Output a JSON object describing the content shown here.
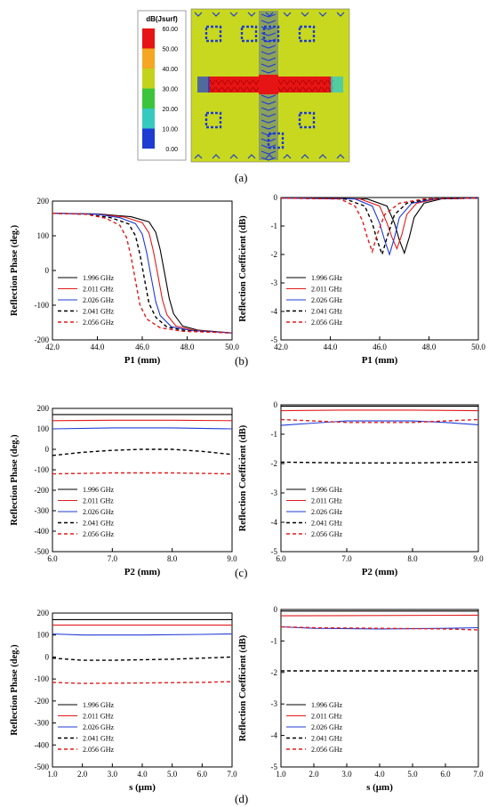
{
  "panel_labels": [
    "(a)",
    "(b)",
    "(c)",
    "(d)"
  ],
  "legend_colors": {
    "1.996 GHz": "#000000",
    "2.011 GHz": "#e21b1b",
    "2.026 GHz": "#1f3bd6",
    "2.041 GHz": "#000000",
    "2.056 GHz": "#e21b1b"
  },
  "field_map": {
    "colorbar_title": "dB(Jsurf)",
    "colorbar_ticks": [
      "60.00",
      "50.00",
      "40.00",
      "30.00",
      "20.00",
      "10.00",
      "0.00"
    ],
    "colorbar_colors": [
      "#e61414",
      "#f5a623",
      "#c3d21a",
      "#3cc43c",
      "#36c9c0",
      "#1e3cd2",
      "#1e3cd2"
    ],
    "background_color": "#c8d81e"
  },
  "chart_data": [
    {
      "id": "b-phase",
      "type": "line",
      "xlabel": "P1 (mm)",
      "ylabel": "Reflection Phase (deg.)",
      "xlim": [
        42,
        50
      ],
      "ylim": [
        -200,
        200
      ],
      "xticks": [
        "42.0",
        "44.0",
        "46.0",
        "48.0",
        "50.0"
      ],
      "yticks": [
        "-200",
        "-100",
        "0",
        "100",
        "200"
      ],
      "legend": "bottom-left",
      "series": [
        {
          "name": "1.996 GHz",
          "dash": false,
          "x": [
            42.0,
            44.0,
            45.5,
            46.3,
            46.6,
            46.8,
            47.0,
            47.2,
            47.4,
            47.8,
            48.5,
            50.0
          ],
          "y": [
            165,
            163,
            155,
            140,
            110,
            60,
            -10,
            -80,
            -125,
            -160,
            -172,
            -180
          ]
        },
        {
          "name": "2.011 GHz",
          "dash": false,
          "x": [
            42.0,
            44.0,
            45.2,
            46.0,
            46.3,
            46.5,
            46.7,
            46.9,
            47.1,
            47.5,
            48.3,
            50.0
          ],
          "y": [
            165,
            162,
            154,
            138,
            108,
            55,
            -15,
            -85,
            -128,
            -160,
            -172,
            -180
          ]
        },
        {
          "name": "2.026 GHz",
          "dash": false,
          "x": [
            42.0,
            44.0,
            45.0,
            45.7,
            46.0,
            46.2,
            46.4,
            46.6,
            46.8,
            47.3,
            48.2,
            50.0
          ],
          "y": [
            165,
            162,
            152,
            135,
            105,
            50,
            -20,
            -90,
            -130,
            -162,
            -173,
            -180
          ]
        },
        {
          "name": "2.041 GHz",
          "dash": true,
          "x": [
            42.0,
            43.5,
            44.6,
            45.4,
            45.7,
            45.9,
            46.1,
            46.3,
            46.6,
            47.1,
            48.0,
            50.0
          ],
          "y": [
            165,
            162,
            152,
            134,
            100,
            45,
            -25,
            -95,
            -135,
            -163,
            -174,
            -180
          ]
        },
        {
          "name": "2.056 GHz",
          "dash": true,
          "x": [
            42.0,
            43.5,
            44.4,
            45.0,
            45.3,
            45.5,
            45.7,
            45.9,
            46.2,
            46.8,
            47.8,
            50.0
          ],
          "y": [
            165,
            162,
            150,
            130,
            95,
            40,
            -30,
            -100,
            -140,
            -165,
            -175,
            -180
          ]
        }
      ]
    },
    {
      "id": "b-coef",
      "type": "line",
      "xlabel": "P1 (mm)",
      "ylabel": "Reflection Coefficient (dB)",
      "xlim": [
        42,
        50
      ],
      "ylim": [
        -5,
        0
      ],
      "xticks": [
        "42.0",
        "44.0",
        "46.0",
        "48.0",
        "50.0"
      ],
      "yticks": [
        "-5",
        "-4",
        "-3",
        "-2",
        "-1",
        "0"
      ],
      "legend": "bottom-left",
      "series": [
        {
          "name": "1.996 GHz",
          "dash": false,
          "x": [
            42.0,
            45.5,
            46.3,
            46.6,
            46.8,
            47.0,
            47.2,
            47.4,
            47.8,
            48.5,
            50.0
          ],
          "y": [
            -0.02,
            -0.05,
            -0.3,
            -0.9,
            -1.5,
            -1.95,
            -1.4,
            -0.7,
            -0.2,
            -0.05,
            -0.02
          ]
        },
        {
          "name": "2.011 GHz",
          "dash": false,
          "x": [
            42.0,
            45.2,
            46.0,
            46.3,
            46.5,
            46.7,
            46.9,
            47.1,
            47.5,
            48.3,
            50.0
          ],
          "y": [
            -0.02,
            -0.05,
            -0.3,
            -0.9,
            -1.4,
            -1.8,
            -1.3,
            -0.6,
            -0.2,
            -0.05,
            -0.02
          ]
        },
        {
          "name": "2.026 GHz",
          "dash": false,
          "x": [
            42.0,
            45.0,
            45.7,
            46.0,
            46.2,
            46.4,
            46.6,
            46.8,
            47.3,
            48.2,
            50.0
          ],
          "y": [
            -0.02,
            -0.05,
            -0.3,
            -0.9,
            -1.5,
            -2.0,
            -1.4,
            -0.7,
            -0.2,
            -0.05,
            -0.02
          ]
        },
        {
          "name": "2.041 GHz",
          "dash": true,
          "x": [
            42.0,
            44.6,
            45.4,
            45.7,
            45.9,
            46.1,
            46.3,
            46.6,
            47.1,
            48.0,
            50.0
          ],
          "y": [
            -0.02,
            -0.05,
            -0.3,
            -0.9,
            -1.5,
            -2.0,
            -1.4,
            -0.6,
            -0.2,
            -0.05,
            -0.02
          ]
        },
        {
          "name": "2.056 GHz",
          "dash": true,
          "x": [
            42.0,
            44.4,
            45.0,
            45.3,
            45.5,
            45.7,
            45.9,
            46.2,
            46.8,
            47.8,
            50.0
          ],
          "y": [
            -0.02,
            -0.05,
            -0.3,
            -0.8,
            -1.4,
            -1.9,
            -1.3,
            -0.6,
            -0.2,
            -0.05,
            -0.02
          ]
        }
      ]
    },
    {
      "id": "c-phase",
      "type": "line",
      "xlabel": "P2 (mm)",
      "ylabel": "Reflection Phase (deg.)",
      "xlim": [
        6,
        9
      ],
      "ylim": [
        -500,
        200
      ],
      "xticks": [
        "6.0",
        "7.0",
        "8.0",
        "9.0"
      ],
      "yticks": [
        "-500",
        "-400",
        "-300",
        "-200",
        "-100",
        "0",
        "100",
        "200"
      ],
      "legend": "bottom-left",
      "series": [
        {
          "name": "1.996 GHz",
          "dash": false,
          "x": [
            6.0,
            7.0,
            8.0,
            9.0
          ],
          "y": [
            170,
            170,
            170,
            170
          ]
        },
        {
          "name": "2.011 GHz",
          "dash": false,
          "x": [
            6.0,
            7.0,
            8.0,
            9.0
          ],
          "y": [
            140,
            142,
            142,
            140
          ]
        },
        {
          "name": "2.026 GHz",
          "dash": false,
          "x": [
            6.0,
            7.0,
            8.0,
            9.0
          ],
          "y": [
            100,
            105,
            105,
            100
          ]
        },
        {
          "name": "2.041 GHz",
          "dash": true,
          "x": [
            6.0,
            6.5,
            7.0,
            7.5,
            8.0,
            8.5,
            9.0
          ],
          "y": [
            -30,
            -15,
            -5,
            0,
            0,
            -10,
            -25
          ]
        },
        {
          "name": "2.056 GHz",
          "dash": true,
          "x": [
            6.0,
            7.0,
            8.0,
            9.0
          ],
          "y": [
            -120,
            -115,
            -115,
            -120
          ]
        }
      ]
    },
    {
      "id": "c-coef",
      "type": "line",
      "xlabel": "P2 (mm)",
      "ylabel": "Reflection Coefficient (dB)",
      "xlim": [
        6,
        9
      ],
      "ylim": [
        -5,
        0
      ],
      "xticks": [
        "6.0",
        "7.0",
        "8.0",
        "9.0"
      ],
      "yticks": [
        "-5",
        "-4",
        "-3",
        "-2",
        "-1",
        "0"
      ],
      "legend": "bottom-left",
      "series": [
        {
          "name": "1.996 GHz",
          "dash": false,
          "x": [
            6.0,
            7.0,
            8.0,
            9.0
          ],
          "y": [
            -0.05,
            -0.05,
            -0.05,
            -0.05
          ]
        },
        {
          "name": "2.011 GHz",
          "dash": false,
          "x": [
            6.0,
            7.0,
            8.0,
            9.0
          ],
          "y": [
            -0.2,
            -0.18,
            -0.18,
            -0.2
          ]
        },
        {
          "name": "2.026 GHz",
          "dash": false,
          "x": [
            6.0,
            6.5,
            7.0,
            8.0,
            8.5,
            9.0
          ],
          "y": [
            -0.7,
            -0.62,
            -0.55,
            -0.55,
            -0.6,
            -0.68
          ]
        },
        {
          "name": "2.041 GHz",
          "dash": true,
          "x": [
            6.0,
            7.0,
            8.0,
            9.0
          ],
          "y": [
            -1.95,
            -1.98,
            -1.98,
            -1.95
          ]
        },
        {
          "name": "2.056 GHz",
          "dash": true,
          "x": [
            6.0,
            6.5,
            7.0,
            8.0,
            8.5,
            9.0
          ],
          "y": [
            -0.5,
            -0.55,
            -0.6,
            -0.6,
            -0.55,
            -0.5
          ]
        }
      ]
    },
    {
      "id": "d-phase",
      "type": "line",
      "xlabel": "s (μm)",
      "ylabel": "Reflection Phase (deg.)",
      "xlim": [
        1,
        7
      ],
      "ylim": [
        -500,
        200
      ],
      "xticks": [
        "1.0",
        "2.0",
        "3.0",
        "4.0",
        "5.0",
        "6.0",
        "7.0"
      ],
      "yticks": [
        "-500",
        "-400",
        "-300",
        "-200",
        "-100",
        "0",
        "100",
        "200"
      ],
      "legend": "bottom-left",
      "series": [
        {
          "name": "1.996 GHz",
          "dash": false,
          "x": [
            1.0,
            7.0
          ],
          "y": [
            170,
            170
          ]
        },
        {
          "name": "2.011 GHz",
          "dash": false,
          "x": [
            1.0,
            7.0
          ],
          "y": [
            145,
            145
          ]
        },
        {
          "name": "2.026 GHz",
          "dash": false,
          "x": [
            1.0,
            2.0,
            4.0,
            6.0,
            7.0
          ],
          "y": [
            105,
            100,
            100,
            103,
            105
          ]
        },
        {
          "name": "2.041 GHz",
          "dash": true,
          "x": [
            1.0,
            2.0,
            3.0,
            5.0,
            6.0,
            7.0
          ],
          "y": [
            -5,
            -15,
            -15,
            -10,
            -5,
            0
          ]
        },
        {
          "name": "2.056 GHz",
          "dash": true,
          "x": [
            1.0,
            2.0,
            4.0,
            6.0,
            7.0
          ],
          "y": [
            -115,
            -120,
            -118,
            -115,
            -112
          ]
        }
      ]
    },
    {
      "id": "d-coef",
      "type": "line",
      "xlabel": "s (μm)",
      "ylabel": "Reflection Coefficient (dB)",
      "xlim": [
        1,
        7
      ],
      "ylim": [
        -5,
        0
      ],
      "xticks": [
        "1.0",
        "2.0",
        "3.0",
        "4.0",
        "5.0",
        "6.0",
        "7.0"
      ],
      "yticks": [
        "-5",
        "-4",
        "-3",
        "-2",
        "-1",
        "0"
      ],
      "legend": "bottom-left",
      "series": [
        {
          "name": "1.996 GHz",
          "dash": false,
          "x": [
            1.0,
            7.0
          ],
          "y": [
            -0.05,
            -0.05
          ]
        },
        {
          "name": "2.011 GHz",
          "dash": false,
          "x": [
            1.0,
            7.0
          ],
          "y": [
            -0.2,
            -0.18
          ]
        },
        {
          "name": "2.026 GHz",
          "dash": false,
          "x": [
            1.0,
            2.0,
            4.0,
            6.0,
            7.0
          ],
          "y": [
            -0.55,
            -0.6,
            -0.62,
            -0.6,
            -0.58
          ]
        },
        {
          "name": "2.041 GHz",
          "dash": true,
          "x": [
            1.0,
            7.0
          ],
          "y": [
            -1.95,
            -1.95
          ]
        },
        {
          "name": "2.056 GHz",
          "dash": true,
          "x": [
            1.0,
            2.0,
            4.0,
            6.0,
            7.0
          ],
          "y": [
            -0.55,
            -0.58,
            -0.6,
            -0.62,
            -0.65
          ]
        }
      ]
    }
  ]
}
